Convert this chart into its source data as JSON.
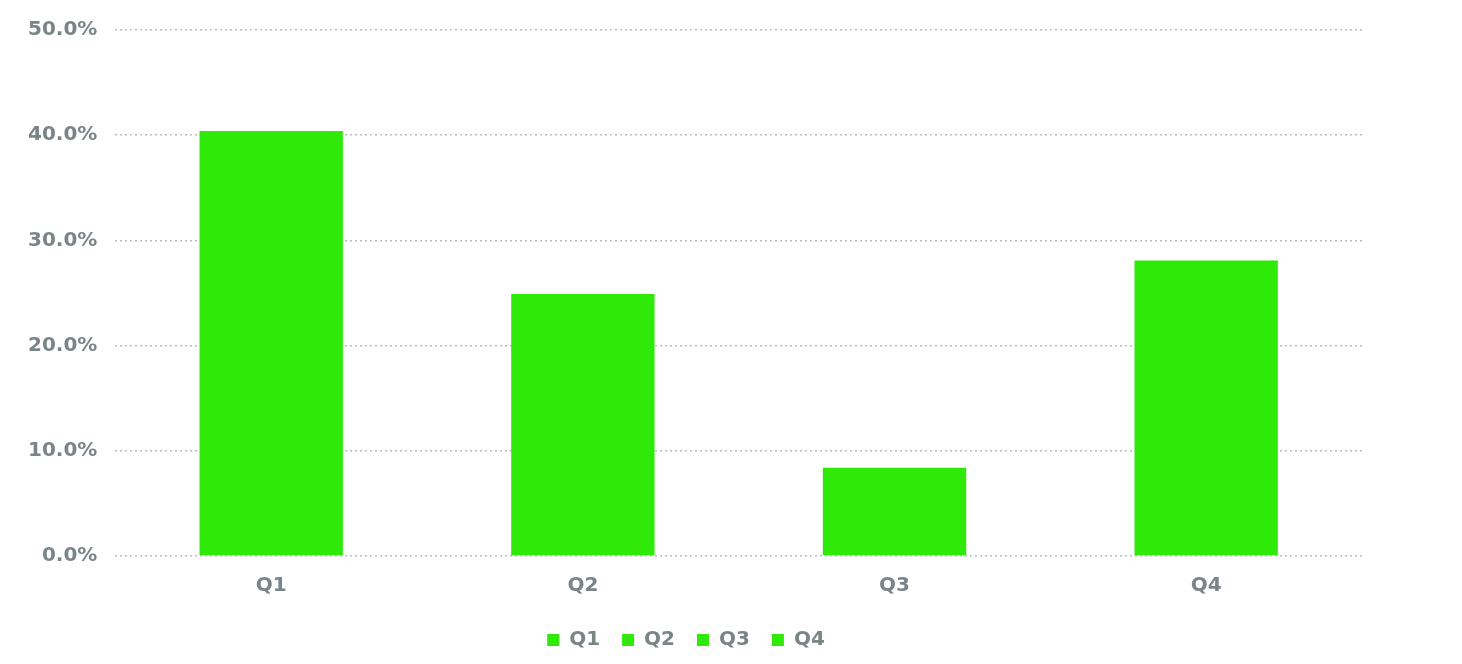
{
  "chart_data": {
    "type": "bar",
    "categories": [
      "Q1",
      "Q2",
      "Q3",
      "Q4"
    ],
    "series": [
      {
        "name": "Q1",
        "color": "#2fea08",
        "values": [
          40.4,
          null,
          null,
          null
        ]
      },
      {
        "name": "Q2",
        "color": "#2fea08",
        "values": [
          null,
          24.9,
          null,
          null
        ]
      },
      {
        "name": "Q3",
        "color": "#2fea08",
        "values": [
          null,
          null,
          8.4,
          null
        ]
      },
      {
        "name": "Q4",
        "color": "#2fea08",
        "values": [
          null,
          null,
          null,
          28.1
        ]
      }
    ],
    "ylim": [
      0,
      50
    ],
    "yticks": [
      {
        "value": 0,
        "label": "0.0%"
      },
      {
        "value": 10,
        "label": "10.0%"
      },
      {
        "value": 20,
        "label": "20.0%"
      },
      {
        "value": 30,
        "label": "30.0%"
      },
      {
        "value": 40,
        "label": "40.0%"
      },
      {
        "value": 50,
        "label": "50.0%"
      }
    ],
    "grid": "y",
    "legend": "bottom"
  }
}
